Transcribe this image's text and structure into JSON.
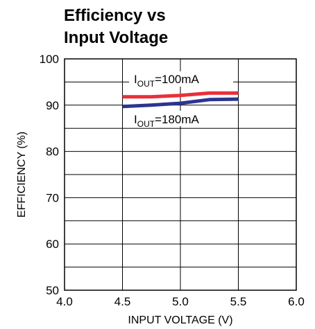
{
  "chart_data": {
    "type": "line",
    "title_line1": "Efficiency vs",
    "title_line2": "Input Voltage",
    "xlabel": "INPUT VOLTAGE (V)",
    "ylabel": "EFFICIENCY (%)",
    "xlim": [
      4.0,
      6.0
    ],
    "ylim": [
      50,
      100
    ],
    "xticks": [
      "4.0",
      "4.5",
      "5.0",
      "5.5",
      "6.0"
    ],
    "yticks": [
      "50",
      "60",
      "70",
      "80",
      "90",
      "100"
    ],
    "grid": true,
    "series": [
      {
        "name": "IOUT=100mA",
        "label_main": "I",
        "label_sub": "OUT",
        "label_rest": "=100mA",
        "color": "#e8303a",
        "x": [
          4.5,
          4.75,
          5.0,
          5.25,
          5.5
        ],
        "y": [
          91.8,
          91.8,
          92.1,
          92.6,
          92.6
        ]
      },
      {
        "name": "IOUT=180mA",
        "label_main": "I",
        "label_sub": "OUT",
        "label_rest": "=180mA",
        "color": "#2b3590",
        "x": [
          4.5,
          4.75,
          5.0,
          5.25,
          5.5
        ],
        "y": [
          89.7,
          90.0,
          90.4,
          91.2,
          91.3
        ]
      }
    ]
  }
}
